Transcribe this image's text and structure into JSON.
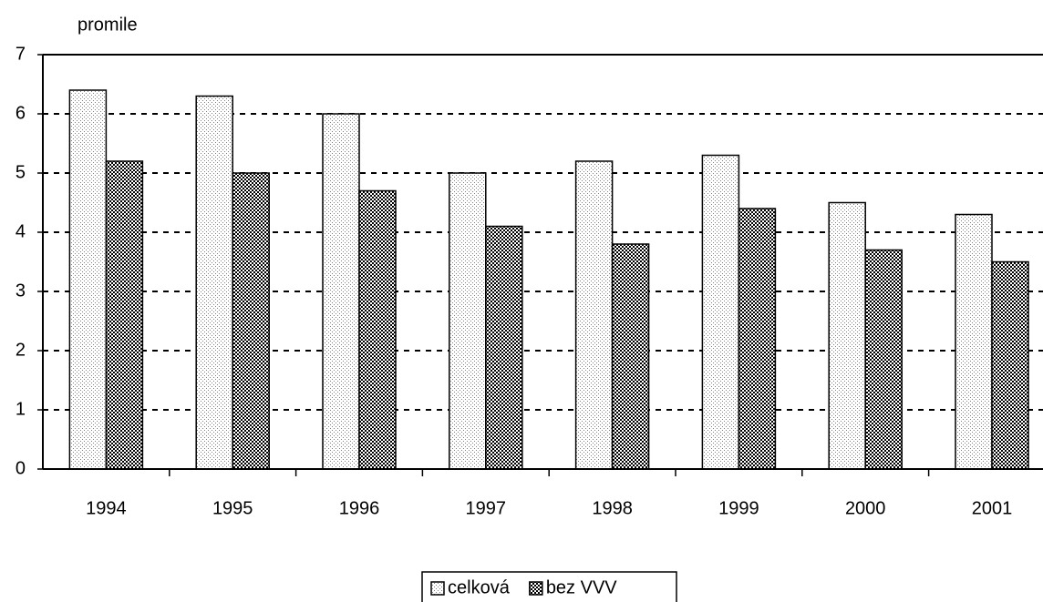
{
  "chart_data": {
    "type": "bar",
    "y_axis_label": "promile",
    "categories": [
      "1994",
      "1995",
      "1996",
      "1997",
      "1998",
      "1999",
      "2000",
      "2001"
    ],
    "series": [
      {
        "name": "celková",
        "color": "#808080",
        "values": [
          6.4,
          6.3,
          6.0,
          5.0,
          5.2,
          5.3,
          4.5,
          4.3
        ]
      },
      {
        "name": "bez VVV",
        "color": "#000000",
        "values": [
          5.2,
          5.0,
          4.7,
          4.1,
          3.8,
          4.4,
          3.7,
          3.5
        ]
      }
    ],
    "ylim": [
      0,
      7
    ],
    "yticks": [
      0,
      1,
      2,
      3,
      4,
      5,
      6,
      7
    ],
    "grid": true,
    "legend": "bottom"
  }
}
